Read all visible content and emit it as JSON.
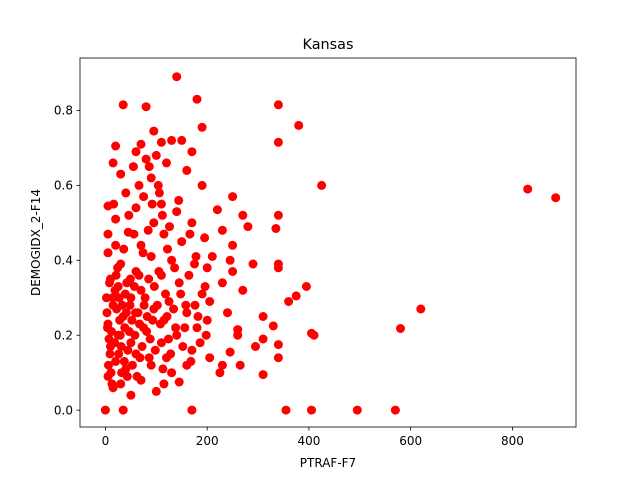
{
  "chart_data": {
    "type": "scatter",
    "title": "Kansas",
    "xlabel": "PTRAF-F7",
    "ylabel": "DEMOGIDX_2-F14",
    "xlim": [
      -50,
      925
    ],
    "ylim": [
      -0.045,
      0.94
    ],
    "xticks": [
      0,
      200,
      400,
      600,
      800
    ],
    "yticks": [
      0.0,
      0.2,
      0.4,
      0.6,
      0.8
    ],
    "ytick_labels": [
      "0.0",
      "0.2",
      "0.4",
      "0.6",
      "0.8"
    ],
    "grid": false,
    "legend": "none",
    "marker_color": "#ff0000",
    "series": [
      {
        "points": [
          [
            140,
            0.89
          ],
          [
            180,
            0.83
          ],
          [
            35,
            0.815
          ],
          [
            340,
            0.815
          ],
          [
            80,
            0.81
          ],
          [
            380,
            0.76
          ],
          [
            190,
            0.755
          ],
          [
            95,
            0.745
          ],
          [
            70,
            0.71
          ],
          [
            150,
            0.72
          ],
          [
            340,
            0.715
          ],
          [
            130,
            0.72
          ],
          [
            20,
            0.705
          ],
          [
            110,
            0.715
          ],
          [
            60,
            0.69
          ],
          [
            170,
            0.69
          ],
          [
            100,
            0.68
          ],
          [
            80,
            0.67
          ],
          [
            120,
            0.66
          ],
          [
            15,
            0.66
          ],
          [
            55,
            0.65
          ],
          [
            160,
            0.64
          ],
          [
            30,
            0.63
          ],
          [
            90,
            0.62
          ],
          [
            190,
            0.6
          ],
          [
            425,
            0.6
          ],
          [
            40,
            0.58
          ],
          [
            75,
            0.57
          ],
          [
            250,
            0.57
          ],
          [
            110,
            0.55
          ],
          [
            830,
            0.59
          ],
          [
            885,
            0.567
          ],
          [
            5,
            0.545
          ],
          [
            60,
            0.54
          ],
          [
            140,
            0.53
          ],
          [
            220,
            0.535
          ],
          [
            270,
            0.52
          ],
          [
            340,
            0.52
          ],
          [
            20,
            0.51
          ],
          [
            95,
            0.5
          ],
          [
            170,
            0.5
          ],
          [
            280,
            0.49
          ],
          [
            230,
            0.48
          ],
          [
            335,
            0.485
          ],
          [
            45,
            0.475
          ],
          [
            5,
            0.47
          ],
          [
            115,
            0.47
          ],
          [
            195,
            0.46
          ],
          [
            20,
            0.44
          ],
          [
            70,
            0.44
          ],
          [
            150,
            0.45
          ],
          [
            250,
            0.44
          ],
          [
            5,
            0.42
          ],
          [
            90,
            0.41
          ],
          [
            130,
            0.4
          ],
          [
            210,
            0.41
          ],
          [
            245,
            0.4
          ],
          [
            30,
            0.39
          ],
          [
            175,
            0.39
          ],
          [
            290,
            0.39
          ],
          [
            340,
            0.39
          ],
          [
            60,
            0.37
          ],
          [
            110,
            0.36
          ],
          [
            200,
            0.38
          ],
          [
            250,
            0.37
          ],
          [
            340,
            0.38
          ],
          [
            10,
            0.35
          ],
          [
            85,
            0.35
          ],
          [
            145,
            0.34
          ],
          [
            230,
            0.34
          ],
          [
            270,
            0.32
          ],
          [
            25,
            0.33
          ],
          [
            70,
            0.32
          ],
          [
            190,
            0.31
          ],
          [
            395,
            0.33
          ],
          [
            375,
            0.305
          ],
          [
            360,
            0.29
          ],
          [
            50,
            0.3
          ],
          [
            125,
            0.29
          ],
          [
            205,
            0.29
          ],
          [
            620,
            0.27
          ],
          [
            15,
            0.28
          ],
          [
            95,
            0.27
          ],
          [
            160,
            0.26
          ],
          [
            240,
            0.26
          ],
          [
            310,
            0.25
          ],
          [
            35,
            0.25
          ],
          [
            115,
            0.24
          ],
          [
            200,
            0.24
          ],
          [
            5,
            0.23
          ],
          [
            75,
            0.22
          ],
          [
            180,
            0.22
          ],
          [
            260,
            0.215
          ],
          [
            330,
            0.225
          ],
          [
            580,
            0.218
          ],
          [
            405,
            0.205
          ],
          [
            410,
            0.2
          ],
          [
            25,
            0.2
          ],
          [
            140,
            0.2
          ],
          [
            260,
            0.2
          ],
          [
            50,
            0.18
          ],
          [
            110,
            0.18
          ],
          [
            310,
            0.19
          ],
          [
            340,
            0.175
          ],
          [
            10,
            0.17
          ],
          [
            170,
            0.16
          ],
          [
            245,
            0.155
          ],
          [
            295,
            0.17
          ],
          [
            60,
            0.15
          ],
          [
            120,
            0.14
          ],
          [
            205,
            0.14
          ],
          [
            340,
            0.14
          ],
          [
            20,
            0.13
          ],
          [
            90,
            0.12
          ],
          [
            160,
            0.12
          ],
          [
            230,
            0.12
          ],
          [
            265,
            0.12
          ],
          [
            40,
            0.11
          ],
          [
            130,
            0.1
          ],
          [
            225,
            0.1
          ],
          [
            310,
            0.095
          ],
          [
            5,
            0.09
          ],
          [
            70,
            0.08
          ],
          [
            145,
            0.075
          ],
          [
            30,
            0.07
          ],
          [
            115,
            0.07
          ],
          [
            15,
            0.06
          ],
          [
            100,
            0.05
          ],
          [
            50,
            0.04
          ],
          [
            0,
            0.0
          ],
          [
            35,
            0.0
          ],
          [
            170,
            0.0
          ],
          [
            355,
            0.0
          ],
          [
            405,
            0.0
          ],
          [
            495,
            0.0
          ],
          [
            570,
            0.0
          ],
          [
            8,
            0.34
          ],
          [
            14,
            0.3
          ],
          [
            22,
            0.27
          ],
          [
            28,
            0.24
          ],
          [
            12,
            0.21
          ],
          [
            18,
            0.18
          ],
          [
            26,
            0.15
          ],
          [
            6,
            0.12
          ],
          [
            32,
            0.1
          ],
          [
            42,
            0.34
          ],
          [
            48,
            0.28
          ],
          [
            38,
            0.22
          ],
          [
            44,
            0.16
          ],
          [
            52,
            0.24
          ],
          [
            58,
            0.2
          ],
          [
            64,
            0.26
          ],
          [
            68,
            0.14
          ],
          [
            78,
            0.3
          ],
          [
            82,
            0.25
          ],
          [
            88,
            0.19
          ],
          [
            96,
            0.33
          ],
          [
            102,
            0.28
          ],
          [
            108,
            0.23
          ],
          [
            118,
            0.31
          ],
          [
            124,
            0.19
          ],
          [
            134,
            0.27
          ],
          [
            66,
            0.36
          ],
          [
            74,
            0.42
          ],
          [
            84,
            0.48
          ],
          [
            92,
            0.55
          ],
          [
            104,
            0.6
          ],
          [
            112,
            0.52
          ],
          [
            122,
            0.43
          ],
          [
            136,
            0.38
          ],
          [
            148,
            0.31
          ],
          [
            156,
            0.22
          ],
          [
            164,
            0.36
          ],
          [
            176,
            0.28
          ],
          [
            186,
            0.18
          ],
          [
            196,
            0.33
          ],
          [
            46,
            0.52
          ],
          [
            56,
            0.47
          ],
          [
            36,
            0.43
          ],
          [
            24,
            0.38
          ],
          [
            16,
            0.55
          ],
          [
            66,
            0.6
          ],
          [
            86,
            0.65
          ],
          [
            106,
            0.58
          ],
          [
            126,
            0.49
          ],
          [
            144,
            0.56
          ],
          [
            166,
            0.47
          ],
          [
            178,
            0.41
          ],
          [
            2,
            0.3
          ],
          [
            3,
            0.26
          ],
          [
            4,
            0.22
          ],
          [
            7,
            0.19
          ],
          [
            9,
            0.15
          ],
          [
            11,
            0.1
          ],
          [
            13,
            0.07
          ],
          [
            19,
            0.32
          ],
          [
            21,
            0.36
          ],
          [
            27,
            0.3
          ],
          [
            29,
            0.2
          ],
          [
            31,
            0.17
          ],
          [
            33,
            0.28
          ],
          [
            37,
            0.13
          ],
          [
            39,
            0.31
          ],
          [
            41,
            0.26
          ],
          [
            43,
            0.09
          ],
          [
            47,
            0.21
          ],
          [
            49,
            0.35
          ],
          [
            53,
            0.12
          ],
          [
            57,
            0.33
          ],
          [
            59,
            0.26
          ],
          [
            62,
            0.09
          ],
          [
            67,
            0.23
          ],
          [
            72,
            0.17
          ],
          [
            76,
            0.28
          ],
          [
            81,
            0.21
          ],
          [
            86,
            0.14
          ],
          [
            93,
            0.24
          ],
          [
            98,
            0.16
          ],
          [
            105,
            0.37
          ],
          [
            113,
            0.11
          ],
          [
            121,
            0.25
          ],
          [
            128,
            0.15
          ],
          [
            138,
            0.22
          ],
          [
            152,
            0.17
          ],
          [
            158,
            0.28
          ],
          [
            168,
            0.13
          ],
          [
            182,
            0.25
          ],
          [
            198,
            0.2
          ]
        ]
      }
    ]
  }
}
